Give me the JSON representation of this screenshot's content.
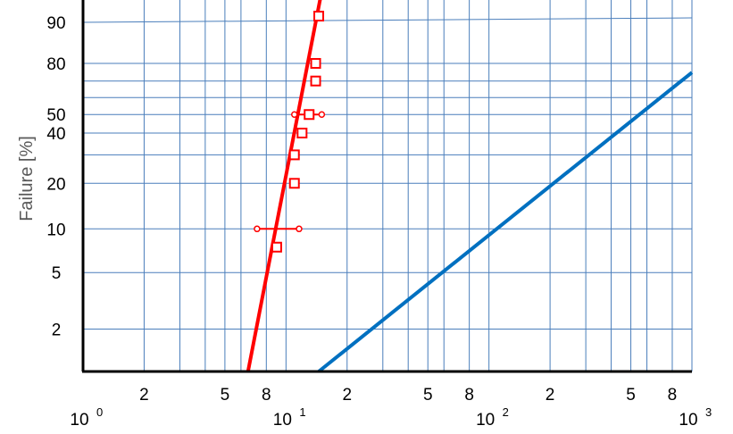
{
  "chart_data": {
    "type": "scatter",
    "title": "",
    "xlabel": "",
    "ylabel": "Failure [%]",
    "x_scale": "log",
    "y_scale": "weibull-probability",
    "xlim": [
      1,
      1000
    ],
    "ylim": [
      1,
      99.5
    ],
    "grid": true,
    "y_ticks": [
      {
        "value": 2,
        "label": "2"
      },
      {
        "value": 5,
        "label": "5"
      },
      {
        "value": 10,
        "label": "10"
      },
      {
        "value": 20,
        "label": "20"
      },
      {
        "value": 40,
        "label": "40"
      },
      {
        "value": 50,
        "label": "50"
      },
      {
        "value": 80,
        "label": "80"
      },
      {
        "value": 90,
        "label": "90"
      }
    ],
    "y_grid_extra": [
      30,
      60,
      70
    ],
    "x_minor_ticks": [
      {
        "value": 2,
        "label": "2"
      },
      {
        "value": 5,
        "label": "5"
      },
      {
        "value": 8,
        "label": "8"
      },
      {
        "value": 20,
        "label": "2"
      },
      {
        "value": 50,
        "label": "5"
      },
      {
        "value": 80,
        "label": "8"
      },
      {
        "value": 200,
        "label": "2"
      },
      {
        "value": 500,
        "label": "5"
      },
      {
        "value": 800,
        "label": "8"
      }
    ],
    "x_decade_labels": [
      {
        "value": 1,
        "base": "10",
        "exp": "0"
      },
      {
        "value": 10,
        "base": "10",
        "exp": "1"
      },
      {
        "value": 100,
        "base": "10",
        "exp": "2"
      },
      {
        "value": 1000,
        "base": "10",
        "exp": "3"
      }
    ],
    "x_grid_extra": [
      3,
      4,
      6,
      30,
      40,
      60,
      300,
      400,
      600
    ],
    "series": [
      {
        "type": "scatter",
        "color": "#ff0000",
        "marker": "open-square",
        "points": [
          {
            "x": 9.0,
            "y": 7.5
          },
          {
            "x": 11.0,
            "y": 20
          },
          {
            "x": 11.0,
            "y": 30
          },
          {
            "x": 12.0,
            "y": 40
          },
          {
            "x": 13.0,
            "y": 50
          },
          {
            "x": 14.0,
            "y": 70
          },
          {
            "x": 14.0,
            "y": 80
          },
          {
            "x": 14.5,
            "y": 97
          }
        ]
      },
      {
        "type": "fit-line",
        "color": "#ff0000",
        "points": [
          {
            "x": 6.5,
            "y": 1
          },
          {
            "x": 15.0,
            "y": 99.5
          }
        ]
      },
      {
        "type": "fit-line",
        "color": "#0070c0",
        "points": [
          {
            "x": 14.5,
            "y": 1
          },
          {
            "x": 1000,
            "y": 75
          }
        ]
      },
      {
        "type": "interval",
        "color": "#ff0000",
        "y": 10,
        "x_low": 7.2,
        "x_high": 11.6
      },
      {
        "type": "interval",
        "color": "#ff0000",
        "y": 50,
        "x_low": 11.0,
        "x_high": 15.0
      }
    ]
  }
}
